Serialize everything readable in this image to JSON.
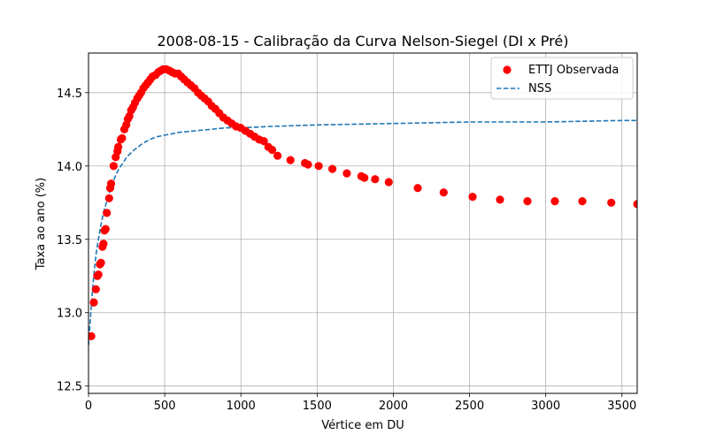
{
  "chart_data": {
    "type": "scatter",
    "title": "2008-08-15 - Calibração da Curva Nelson-Siegel (DI x Pré)",
    "xlabel": "Vértice em DU",
    "ylabel": "Taxa ao ano (%)",
    "xlim": [
      0,
      3600
    ],
    "ylim": [
      12.45,
      14.77
    ],
    "xticks": [
      "0",
      "500",
      "1000",
      "1500",
      "2000",
      "2500",
      "3000",
      "3500"
    ],
    "yticks": [
      "12.5",
      "13.0",
      "13.5",
      "14.0",
      "14.5"
    ],
    "grid": true,
    "legend_position": "top-right",
    "colors": {
      "observed": "#ff0000",
      "fit": "#1f77b4"
    },
    "series": [
      {
        "name": "ETTJ Observada",
        "kind": "scatter",
        "points": [
          [
            18,
            12.84
          ],
          [
            35,
            13.07
          ],
          [
            48,
            13.16
          ],
          [
            58,
            13.25
          ],
          [
            65,
            13.26
          ],
          [
            75,
            13.33
          ],
          [
            82,
            13.34
          ],
          [
            92,
            13.45
          ],
          [
            98,
            13.47
          ],
          [
            105,
            13.56
          ],
          [
            112,
            13.57
          ],
          [
            120,
            13.68
          ],
          [
            135,
            13.78
          ],
          [
            142,
            13.85
          ],
          [
            148,
            13.88
          ],
          [
            165,
            14.0
          ],
          [
            178,
            14.06
          ],
          [
            190,
            14.1
          ],
          [
            195,
            14.13
          ],
          [
            212,
            14.18
          ],
          [
            220,
            14.19
          ],
          [
            235,
            14.25
          ],
          [
            248,
            14.28
          ],
          [
            258,
            14.32
          ],
          [
            268,
            14.34
          ],
          [
            280,
            14.38
          ],
          [
            292,
            14.4
          ],
          [
            305,
            14.43
          ],
          [
            320,
            14.46
          ],
          [
            332,
            14.48
          ],
          [
            345,
            14.5
          ],
          [
            360,
            14.53
          ],
          [
            375,
            14.55
          ],
          [
            390,
            14.57
          ],
          [
            405,
            14.59
          ],
          [
            420,
            14.61
          ],
          [
            440,
            14.62
          ],
          [
            458,
            14.64
          ],
          [
            475,
            14.65
          ],
          [
            492,
            14.66
          ],
          [
            510,
            14.66
          ],
          [
            530,
            14.65
          ],
          [
            548,
            14.64
          ],
          [
            568,
            14.63
          ],
          [
            588,
            14.63
          ],
          [
            608,
            14.61
          ],
          [
            628,
            14.59
          ],
          [
            650,
            14.57
          ],
          [
            672,
            14.55
          ],
          [
            695,
            14.53
          ],
          [
            718,
            14.5
          ],
          [
            740,
            14.48
          ],
          [
            762,
            14.46
          ],
          [
            785,
            14.44
          ],
          [
            808,
            14.41
          ],
          [
            832,
            14.39
          ],
          [
            858,
            14.36
          ],
          [
            885,
            14.33
          ],
          [
            912,
            14.31
          ],
          [
            940,
            14.29
          ],
          [
            968,
            14.27
          ],
          [
            998,
            14.26
          ],
          [
            1030,
            14.24
          ],
          [
            1060,
            14.22
          ],
          [
            1090,
            14.2
          ],
          [
            1120,
            14.18
          ],
          [
            1150,
            14.17
          ],
          [
            1180,
            14.13
          ],
          [
            1205,
            14.11
          ],
          [
            1240,
            14.07
          ],
          [
            1325,
            14.04
          ],
          [
            1420,
            14.02
          ],
          [
            1440,
            14.01
          ],
          [
            1510,
            14.0
          ],
          [
            1600,
            13.98
          ],
          [
            1695,
            13.95
          ],
          [
            1790,
            13.93
          ],
          [
            1810,
            13.92
          ],
          [
            1880,
            13.91
          ],
          [
            1970,
            13.89
          ],
          [
            2160,
            13.85
          ],
          [
            2330,
            13.82
          ],
          [
            2520,
            13.79
          ],
          [
            2700,
            13.77
          ],
          [
            2880,
            13.76
          ],
          [
            3060,
            13.76
          ],
          [
            3240,
            13.76
          ],
          [
            3430,
            13.75
          ],
          [
            3600,
            13.74
          ]
        ]
      },
      {
        "name": "NSS",
        "kind": "line",
        "style": "dashed",
        "points": [
          [
            0,
            12.78
          ],
          [
            10,
            12.92
          ],
          [
            20,
            13.07
          ],
          [
            30,
            13.2
          ],
          [
            40,
            13.31
          ],
          [
            50,
            13.4
          ],
          [
            60,
            13.47
          ],
          [
            70,
            13.53
          ],
          [
            80,
            13.59
          ],
          [
            90,
            13.64
          ],
          [
            100,
            13.69
          ],
          [
            120,
            13.76
          ],
          [
            140,
            13.83
          ],
          [
            160,
            13.89
          ],
          [
            180,
            13.94
          ],
          [
            200,
            13.98
          ],
          [
            250,
            14.06
          ],
          [
            300,
            14.11
          ],
          [
            350,
            14.15
          ],
          [
            400,
            14.18
          ],
          [
            450,
            14.2
          ],
          [
            500,
            14.21
          ],
          [
            600,
            14.23
          ],
          [
            700,
            14.24
          ],
          [
            800,
            14.25
          ],
          [
            900,
            14.26
          ],
          [
            1000,
            14.26
          ],
          [
            1200,
            14.27
          ],
          [
            1500,
            14.28
          ],
          [
            2000,
            14.29
          ],
          [
            2500,
            14.3
          ],
          [
            3000,
            14.3
          ],
          [
            3500,
            14.31
          ],
          [
            3600,
            14.31
          ]
        ]
      }
    ]
  }
}
